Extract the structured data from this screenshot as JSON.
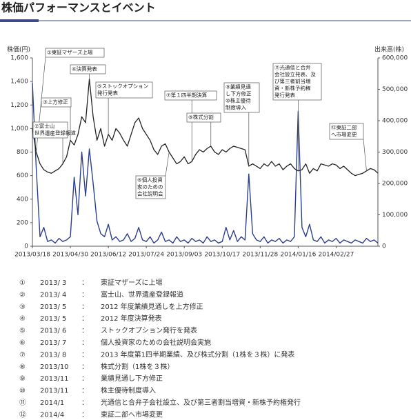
{
  "chart_data": {
    "type": "line",
    "title": "株価パフォーマンスとイベント",
    "y_label": "株価(円)",
    "y2_label": "出来高(株)",
    "categories": [
      "2013/03/18",
      null,
      null,
      null,
      null,
      null,
      null,
      null,
      null,
      null,
      "2013/04/30",
      null,
      null,
      null,
      null,
      null,
      null,
      null,
      null,
      null,
      "2013/06/12",
      null,
      null,
      null,
      null,
      null,
      null,
      null,
      null,
      null,
      "2013/07/24",
      null,
      null,
      null,
      null,
      null,
      null,
      null,
      null,
      null,
      "2013/09/03",
      null,
      null,
      null,
      null,
      null,
      null,
      null,
      null,
      null,
      "2013/10/17",
      null,
      null,
      null,
      null,
      null,
      null,
      null,
      null,
      null,
      "2013/11/28",
      null,
      null,
      null,
      null,
      null,
      null,
      null,
      null,
      null,
      "2014/01/16",
      null,
      null,
      null,
      null,
      null,
      null,
      null,
      null,
      null,
      "2014/02/27",
      null,
      null,
      null,
      null,
      null,
      null,
      null,
      null,
      null,
      null,
      null
    ],
    "series": [
      {
        "color": "#222222",
        "values": [
          1000,
          800,
          700,
          650,
          630,
          620,
          640,
          660,
          700,
          760,
          900,
          860,
          950,
          1100,
          1050,
          1420,
          1100,
          900,
          1000,
          850,
          950,
          900,
          1000,
          960,
          900,
          850,
          950,
          1050,
          1090,
          1000,
          950,
          900,
          820,
          780,
          850,
          870,
          800,
          750,
          700,
          720,
          760,
          700,
          720,
          780,
          820,
          800,
          830,
          850,
          800,
          780,
          820,
          800,
          830,
          850,
          840,
          830,
          820,
          680,
          700,
          680,
          660,
          700,
          680,
          720,
          680,
          700,
          650,
          680,
          700,
          660,
          640,
          650,
          700,
          620,
          660,
          640,
          700,
          690,
          680,
          700,
          690,
          660,
          680,
          650,
          620,
          600,
          610,
          620,
          640,
          660,
          650,
          620
        ]
      },
      {
        "color": "#2b3f8c",
        "axis": "y2",
        "values": [
          520000,
          250000,
          30000,
          60000,
          15000,
          20000,
          10000,
          25000,
          15000,
          20000,
          30000,
          220000,
          100000,
          300000,
          160000,
          310000,
          200000,
          80000,
          40000,
          30000,
          70000,
          20000,
          30000,
          15000,
          20000,
          40000,
          15000,
          25000,
          60000,
          20000,
          15000,
          30000,
          10000,
          20000,
          45000,
          15000,
          20000,
          10000,
          30000,
          15000,
          20000,
          10000,
          25000,
          15000,
          20000,
          10000,
          30000,
          15000,
          20000,
          10000,
          15000,
          60000,
          20000,
          50000,
          15000,
          30000,
          20000,
          230000,
          40000,
          20000,
          15000,
          30000,
          10000,
          20000,
          15000,
          25000,
          10000,
          20000,
          15000,
          30000,
          430000,
          60000,
          30000,
          70000,
          20000,
          15000,
          30000,
          10000,
          20000,
          15000,
          25000,
          10000,
          20000,
          15000,
          10000,
          20000,
          15000,
          10000,
          25000,
          15000,
          20000,
          10000
        ]
      }
    ],
    "ylim": [
      0,
      1600
    ],
    "yticks": [
      0,
      200,
      400,
      600,
      800,
      {
        "value": 1000,
        "label": "1,000"
      },
      {
        "value": 1200,
        "label": "1,200"
      },
      {
        "value": 1400,
        "label": "1,400"
      },
      {
        "value": 1600,
        "label": "1,600"
      }
    ],
    "y2lim": [
      0,
      600000
    ],
    "y2ticks": [
      0,
      {
        "value": 100000,
        "label": "100,000"
      },
      {
        "value": 200000,
        "label": "200,000"
      },
      {
        "value": 300000,
        "label": "300,000"
      },
      {
        "value": 400000,
        "label": "400,000"
      },
      {
        "value": 500000,
        "label": "500,000"
      },
      {
        "value": 600000,
        "label": "600,000"
      }
    ],
    "annotations": [
      [
        "①東証マザーズ上場"
      ],
      [
        "②富士山",
        "世界遺産登録報道"
      ],
      [
        "③上方修正"
      ],
      [
        "④決算発表"
      ],
      [
        "⑤ストックオプション",
        "発行発表"
      ],
      [
        "⑥個人投資",
        "家のための",
        "会社説明会"
      ],
      [
        "⑦第１四半期決算"
      ],
      [
        "⑧株式分割"
      ],
      [
        "⑨業績見通",
        "し下方修正",
        "⑩株主優待",
        "制度導入"
      ],
      [
        "⑪光通信と合弁",
        "会社設立発表、及",
        "び第三者割当増",
        "資・新株予約権",
        "発行発表"
      ],
      [
        "⑫東証二部",
        "へ市場変更"
      ]
    ]
  },
  "events": [
    [
      "①",
      "2013/ 3",
      "：",
      "東証マザーズに上場"
    ],
    [
      "②",
      "2013/ 4",
      "：",
      "富士山、世界遺産登録報道"
    ],
    [
      "③",
      "2013/ 5",
      "：",
      "2012 年度業績見通しを上方修正"
    ],
    [
      "④",
      "2013/ 5",
      "：",
      "2012 年度決算発表"
    ],
    [
      "⑤",
      "2013/ 6",
      "：",
      "ストックオプション発行を発表"
    ],
    [
      "⑥",
      "2013/ 7",
      "：",
      "個人投資家のための会社説明会実施"
    ],
    [
      "⑦",
      "2013/ 8",
      "：",
      "2013 年度第1四半期業績、及び株式分割（1株を３株）に発表"
    ],
    [
      "⑧",
      "2013/10",
      "：",
      "株式分割（1株を３株）"
    ],
    [
      "⑨",
      "2013/11",
      "：",
      "業績見通し下方修正"
    ],
    [
      "⑩",
      "2013/11",
      "：",
      "株主優待制度導入"
    ],
    [
      "⑪",
      "2014/1",
      "：",
      "光通信と合弁子会社設立、及び第三者割当増資・新株予約権発行"
    ],
    [
      "⑫",
      "2014/4",
      "：",
      "東証二部へ市場変更"
    ]
  ]
}
